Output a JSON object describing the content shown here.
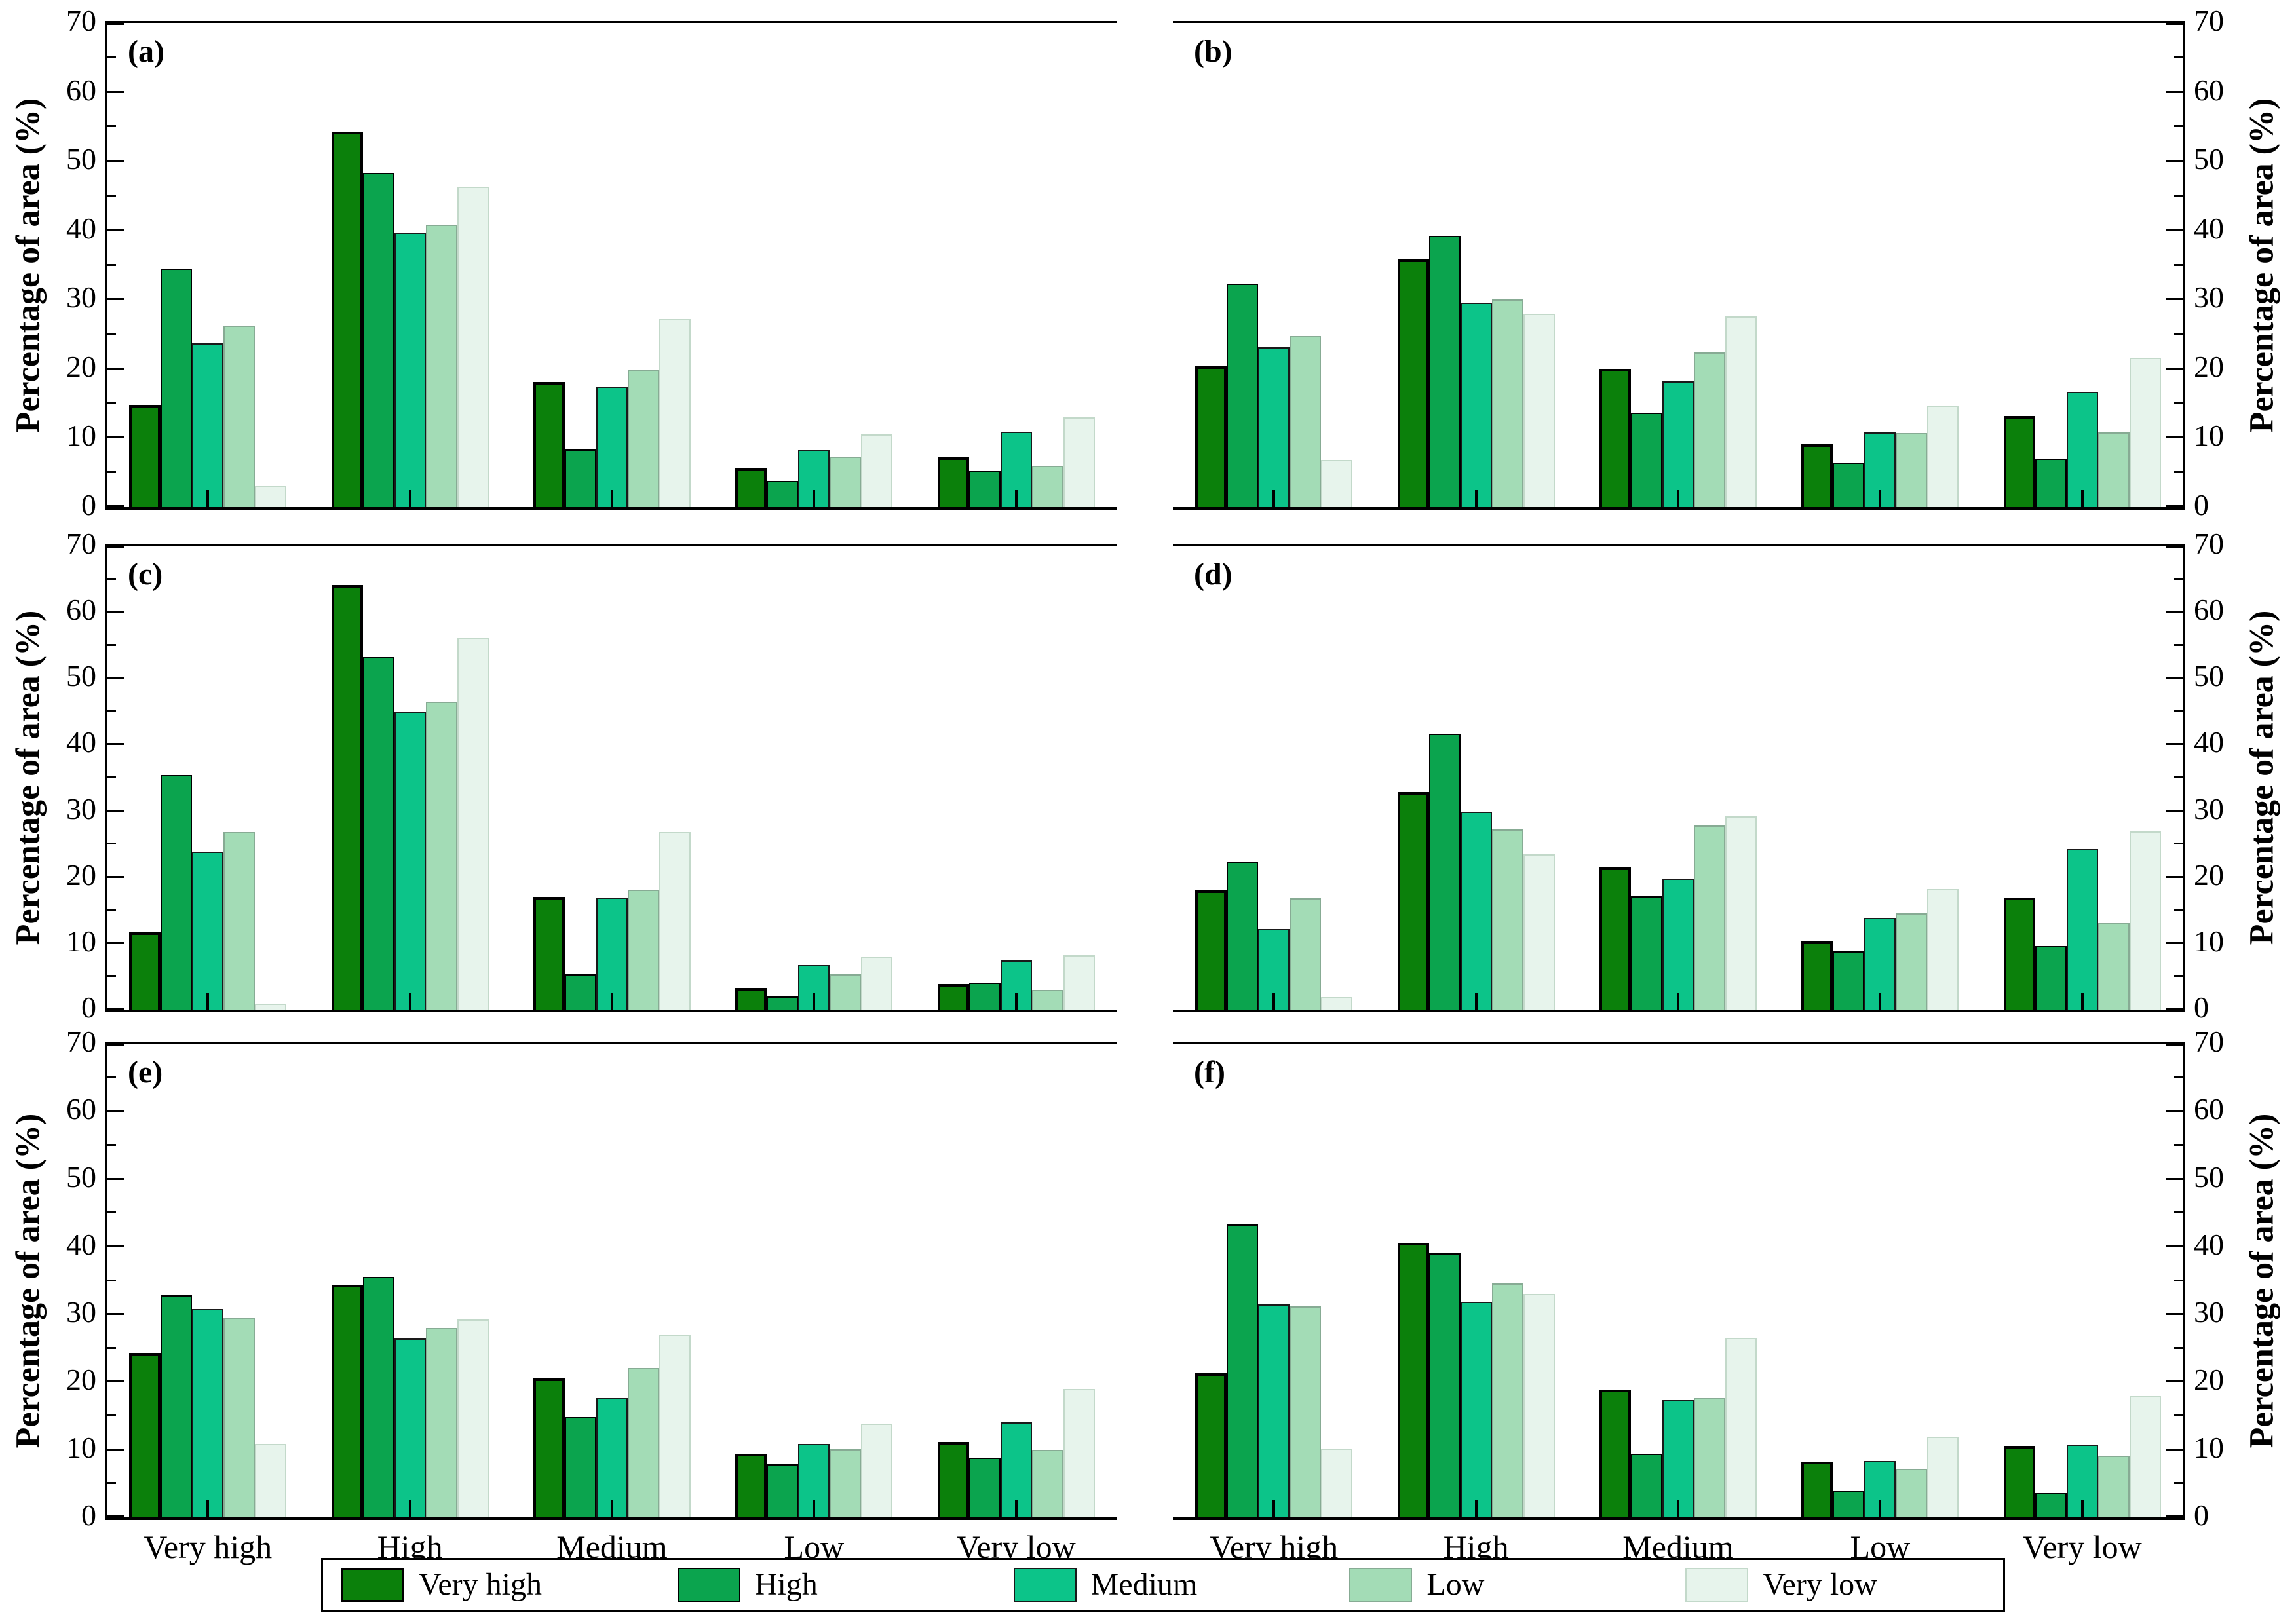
{
  "figure": {
    "background": "#ffffff",
    "axis_color": "#000000"
  },
  "chart_data": {
    "type": "bar",
    "title": "",
    "xlabel": "",
    "ylabel": "Percentage of area (%)",
    "ylim": [
      0,
      70
    ],
    "ytick_step": 10,
    "yminor_step": 5,
    "grid": false,
    "categories": [
      "Very high",
      "High",
      "Medium",
      "Low",
      "Very low"
    ],
    "series_style": [
      {
        "name": "Very high",
        "fill": "#0b800b",
        "border": "#000000",
        "border_w": 4
      },
      {
        "name": "High",
        "fill": "#0ba44e",
        "border": "#000000",
        "border_w": 2
      },
      {
        "name": "Medium",
        "fill": "#0cc489",
        "border": "#1a1a1a",
        "border_w": 2
      },
      {
        "name": "Low",
        "fill": "#a3dcb6",
        "border": "#87ab94",
        "border_w": 2
      },
      {
        "name": "Very low",
        "fill": "#e7f4ec",
        "border": "#c3d9ca",
        "border_w": 2
      }
    ],
    "panels": [
      {
        "label": "(a)",
        "axis_side": "left",
        "series": [
          {
            "name": "Very high",
            "values": [
              14.8,
              54.3,
              18.1,
              5.6,
              7.2
            ]
          },
          {
            "name": "High",
            "values": [
              34.5,
              48.3,
              8.3,
              3.8,
              5.2
            ]
          },
          {
            "name": "Medium",
            "values": [
              23.7,
              39.7,
              17.4,
              8.2,
              10.9
            ]
          },
          {
            "name": "Low",
            "values": [
              26.2,
              40.8,
              19.8,
              7.3,
              6.0
            ]
          },
          {
            "name": "Very low",
            "values": [
              3.0,
              46.3,
              27.2,
              10.5,
              13.0
            ]
          }
        ]
      },
      {
        "label": "(b)",
        "axis_side": "right",
        "series": [
          {
            "name": "Very high",
            "values": [
              20.4,
              35.8,
              20.0,
              9.1,
              13.2
            ]
          },
          {
            "name": "High",
            "values": [
              32.3,
              39.2,
              13.6,
              6.4,
              7.0
            ]
          },
          {
            "name": "Medium",
            "values": [
              23.1,
              29.6,
              18.2,
              10.8,
              16.7
            ]
          },
          {
            "name": "Low",
            "values": [
              24.7,
              30.0,
              22.4,
              10.7,
              10.8
            ]
          },
          {
            "name": "Very low",
            "values": [
              6.8,
              27.9,
              27.6,
              14.7,
              21.6
            ]
          }
        ]
      },
      {
        "label": "(c)",
        "axis_side": "left",
        "series": [
          {
            "name": "Very high",
            "values": [
              11.7,
              64.1,
              17.0,
              3.3,
              3.9
            ]
          },
          {
            "name": "High",
            "values": [
              35.4,
              53.2,
              5.3,
              2.0,
              4.1
            ]
          },
          {
            "name": "Medium",
            "values": [
              23.8,
              45.0,
              16.9,
              6.7,
              7.4
            ]
          },
          {
            "name": "Low",
            "values": [
              26.8,
              46.5,
              18.1,
              5.3,
              3.0
            ]
          },
          {
            "name": "Very low",
            "values": [
              0.9,
              56.1,
              26.8,
              8.0,
              8.2
            ]
          }
        ]
      },
      {
        "label": "(d)",
        "axis_side": "right",
        "series": [
          {
            "name": "Very high",
            "values": [
              18.0,
              32.8,
              21.5,
              10.3,
              16.9
            ]
          },
          {
            "name": "High",
            "values": [
              22.2,
              41.6,
              17.1,
              8.8,
              9.6
            ]
          },
          {
            "name": "Medium",
            "values": [
              12.2,
              29.9,
              19.8,
              13.8,
              24.2
            ]
          },
          {
            "name": "Low",
            "values": [
              16.8,
              27.2,
              27.8,
              14.5,
              13.1
            ]
          },
          {
            "name": "Very low",
            "values": [
              1.9,
              23.4,
              29.2,
              18.2,
              26.9
            ]
          }
        ]
      },
      {
        "label": "(e)",
        "axis_side": "left",
        "series": [
          {
            "name": "Very high",
            "values": [
              24.3,
              34.4,
              20.5,
              9.4,
              11.1
            ]
          },
          {
            "name": "High",
            "values": [
              32.8,
              35.5,
              14.8,
              7.8,
              8.8
            ]
          },
          {
            "name": "Medium",
            "values": [
              30.8,
              26.4,
              17.6,
              10.8,
              14.0
            ]
          },
          {
            "name": "Low",
            "values": [
              29.5,
              28.0,
              22.1,
              10.1,
              10.0
            ]
          },
          {
            "name": "Very low",
            "values": [
              10.8,
              29.2,
              27.0,
              13.8,
              19.0
            ]
          }
        ]
      },
      {
        "label": "(f)",
        "axis_side": "right",
        "series": [
          {
            "name": "Very high",
            "values": [
              21.3,
              40.6,
              18.9,
              8.2,
              10.6
            ]
          },
          {
            "name": "High",
            "values": [
              43.3,
              39.0,
              9.4,
              3.9,
              3.6
            ]
          },
          {
            "name": "Medium",
            "values": [
              31.5,
              31.9,
              17.3,
              8.3,
              10.7
            ]
          },
          {
            "name": "Low",
            "values": [
              31.2,
              34.6,
              17.6,
              7.2,
              9.1
            ]
          },
          {
            "name": "Very low",
            "values": [
              10.2,
              33.0,
              26.5,
              11.9,
              17.9
            ]
          }
        ]
      }
    ],
    "legend": {
      "position": "bottom",
      "entries": [
        "Very high",
        "High",
        "Medium",
        "Low",
        "Very low"
      ]
    }
  }
}
